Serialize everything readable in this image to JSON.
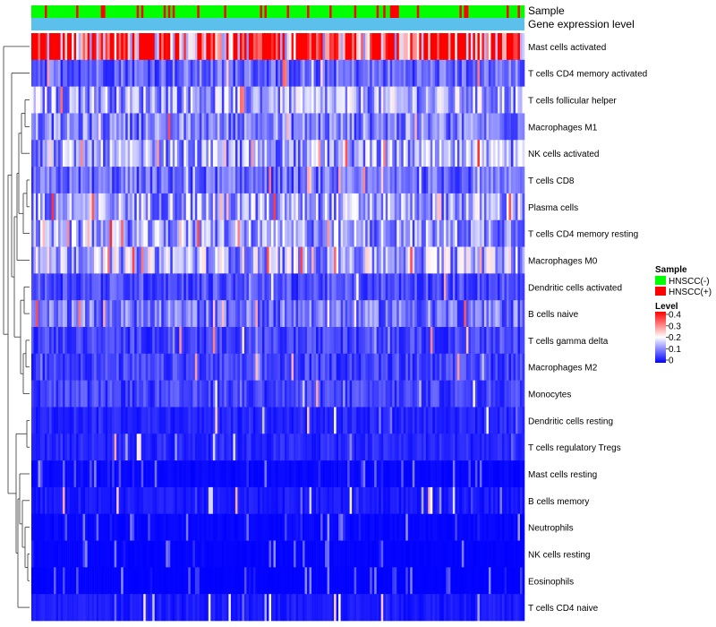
{
  "chart_data": {
    "type": "heatmap",
    "annotation_tracks": [
      "Sample",
      "Gene expression level"
    ],
    "rows": [
      "Mast cells activated",
      "T cells CD4 memory activated",
      "T cells follicular helper",
      "Macrophages M1",
      "NK cells activated",
      "T cells CD8",
      "Plasma cells",
      "T cells CD4 memory resting",
      "Macrophages M0",
      "Dendritic cells activated",
      "B cells naive",
      "T cells gamma delta",
      "Macrophages M2",
      "Monocytes",
      "Dendritic cells resting",
      "T cells regulatory  Tregs",
      "Mast cells resting",
      "B cells memory",
      "Neutrophils",
      "NK cells resting",
      "Eosinophils",
      "T cells CD4 naive"
    ],
    "row_mean_levels": [
      0.33,
      0.08,
      0.13,
      0.1,
      0.12,
      0.08,
      0.13,
      0.12,
      0.14,
      0.06,
      0.09,
      0.05,
      0.05,
      0.05,
      0.03,
      0.03,
      0.01,
      0.02,
      0.01,
      0.005,
      0.003,
      0.02
    ],
    "column_count": 220,
    "column_groups": {
      "HNSCC(-)": 0.82,
      "HNSCC(+)": 0.18
    },
    "value_range": [
      0,
      0.4
    ],
    "colors": {
      "low": "#0000ff",
      "mid": "#ffffff",
      "high": "#ff0000",
      "negative": "#00ff00",
      "positive": "#ff0000",
      "gene_track": "#5bc0eb"
    },
    "legend": {
      "sample_title": "Sample",
      "sample_entries": [
        {
          "label": "HNSCC(-)",
          "color": "#00ff00"
        },
        {
          "label": "HNSCC(+)",
          "color": "#ff0000"
        }
      ],
      "level_title": "Level",
      "level_ticks": [
        "0.4",
        "0.3",
        "0.2",
        "0.1",
        "0"
      ]
    }
  }
}
